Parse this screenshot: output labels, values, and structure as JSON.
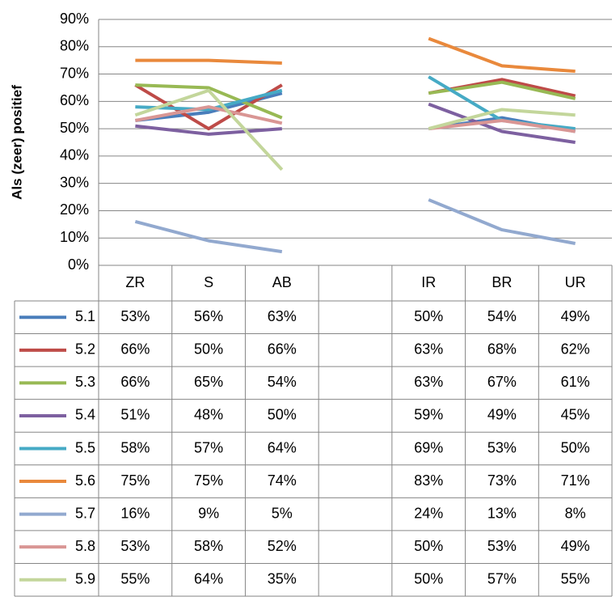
{
  "chart_data": {
    "type": "line",
    "ylabel": "Als (zeer) positief",
    "categories": [
      "ZR",
      "S",
      "AB",
      null,
      "IR",
      "BR",
      "UR"
    ],
    "ylim": [
      0,
      90
    ],
    "yticks": [
      {
        "value": 0,
        "label": "0%"
      },
      {
        "value": 10,
        "label": "10%"
      },
      {
        "value": 20,
        "label": "20%"
      },
      {
        "value": 30,
        "label": "30%"
      },
      {
        "value": 40,
        "label": "40%"
      },
      {
        "value": 50,
        "label": "50%"
      },
      {
        "value": 60,
        "label": "60%"
      },
      {
        "value": 70,
        "label": "70%"
      },
      {
        "value": 80,
        "label": "80%"
      },
      {
        "value": 90,
        "label": "90%"
      }
    ],
    "grid": true,
    "series": [
      {
        "name": "5.1",
        "color": "#4a7ebb",
        "values": [
          53,
          56,
          63,
          null,
          50,
          54,
          49
        ],
        "value_labels": [
          "53%",
          "56%",
          "63%",
          null,
          "50%",
          "54%",
          "49%"
        ]
      },
      {
        "name": "5.2",
        "color": "#be4b48",
        "values": [
          66,
          50,
          66,
          null,
          63,
          68,
          62
        ],
        "value_labels": [
          "66%",
          "50%",
          "66%",
          null,
          "63%",
          "68%",
          "62%"
        ]
      },
      {
        "name": "5.3",
        "color": "#98b954",
        "values": [
          66,
          65,
          54,
          null,
          63,
          67,
          61
        ],
        "value_labels": [
          "66%",
          "65%",
          "54%",
          null,
          "63%",
          "67%",
          "61%"
        ]
      },
      {
        "name": "5.4",
        "color": "#7d60a0",
        "values": [
          51,
          48,
          50,
          null,
          59,
          49,
          45
        ],
        "value_labels": [
          "51%",
          "48%",
          "50%",
          null,
          "59%",
          "49%",
          "45%"
        ]
      },
      {
        "name": "5.5",
        "color": "#46aac5",
        "values": [
          58,
          57,
          64,
          null,
          69,
          53,
          50
        ],
        "value_labels": [
          "58%",
          "57%",
          "64%",
          null,
          "69%",
          "53%",
          "50%"
        ]
      },
      {
        "name": "5.6",
        "color": "#e9893c",
        "values": [
          75,
          75,
          74,
          null,
          83,
          73,
          71
        ],
        "value_labels": [
          "75%",
          "75%",
          "74%",
          null,
          "83%",
          "73%",
          "71%"
        ]
      },
      {
        "name": "5.7",
        "color": "#92a9cf",
        "values": [
          16,
          9,
          5,
          null,
          24,
          13,
          8
        ],
        "value_labels": [
          "16%",
          "9%",
          "5%",
          null,
          "24%",
          "13%",
          "8%"
        ]
      },
      {
        "name": "5.8",
        "color": "#d99694",
        "values": [
          53,
          58,
          52,
          null,
          50,
          53,
          49
        ],
        "value_labels": [
          "53%",
          "58%",
          "52%",
          null,
          "50%",
          "53%",
          "49%"
        ]
      },
      {
        "name": "5.9",
        "color": "#c3d69b",
        "values": [
          55,
          64,
          35,
          null,
          50,
          57,
          55
        ],
        "value_labels": [
          "55%",
          "64%",
          "35%",
          null,
          "50%",
          "57%",
          "55%"
        ]
      }
    ]
  }
}
